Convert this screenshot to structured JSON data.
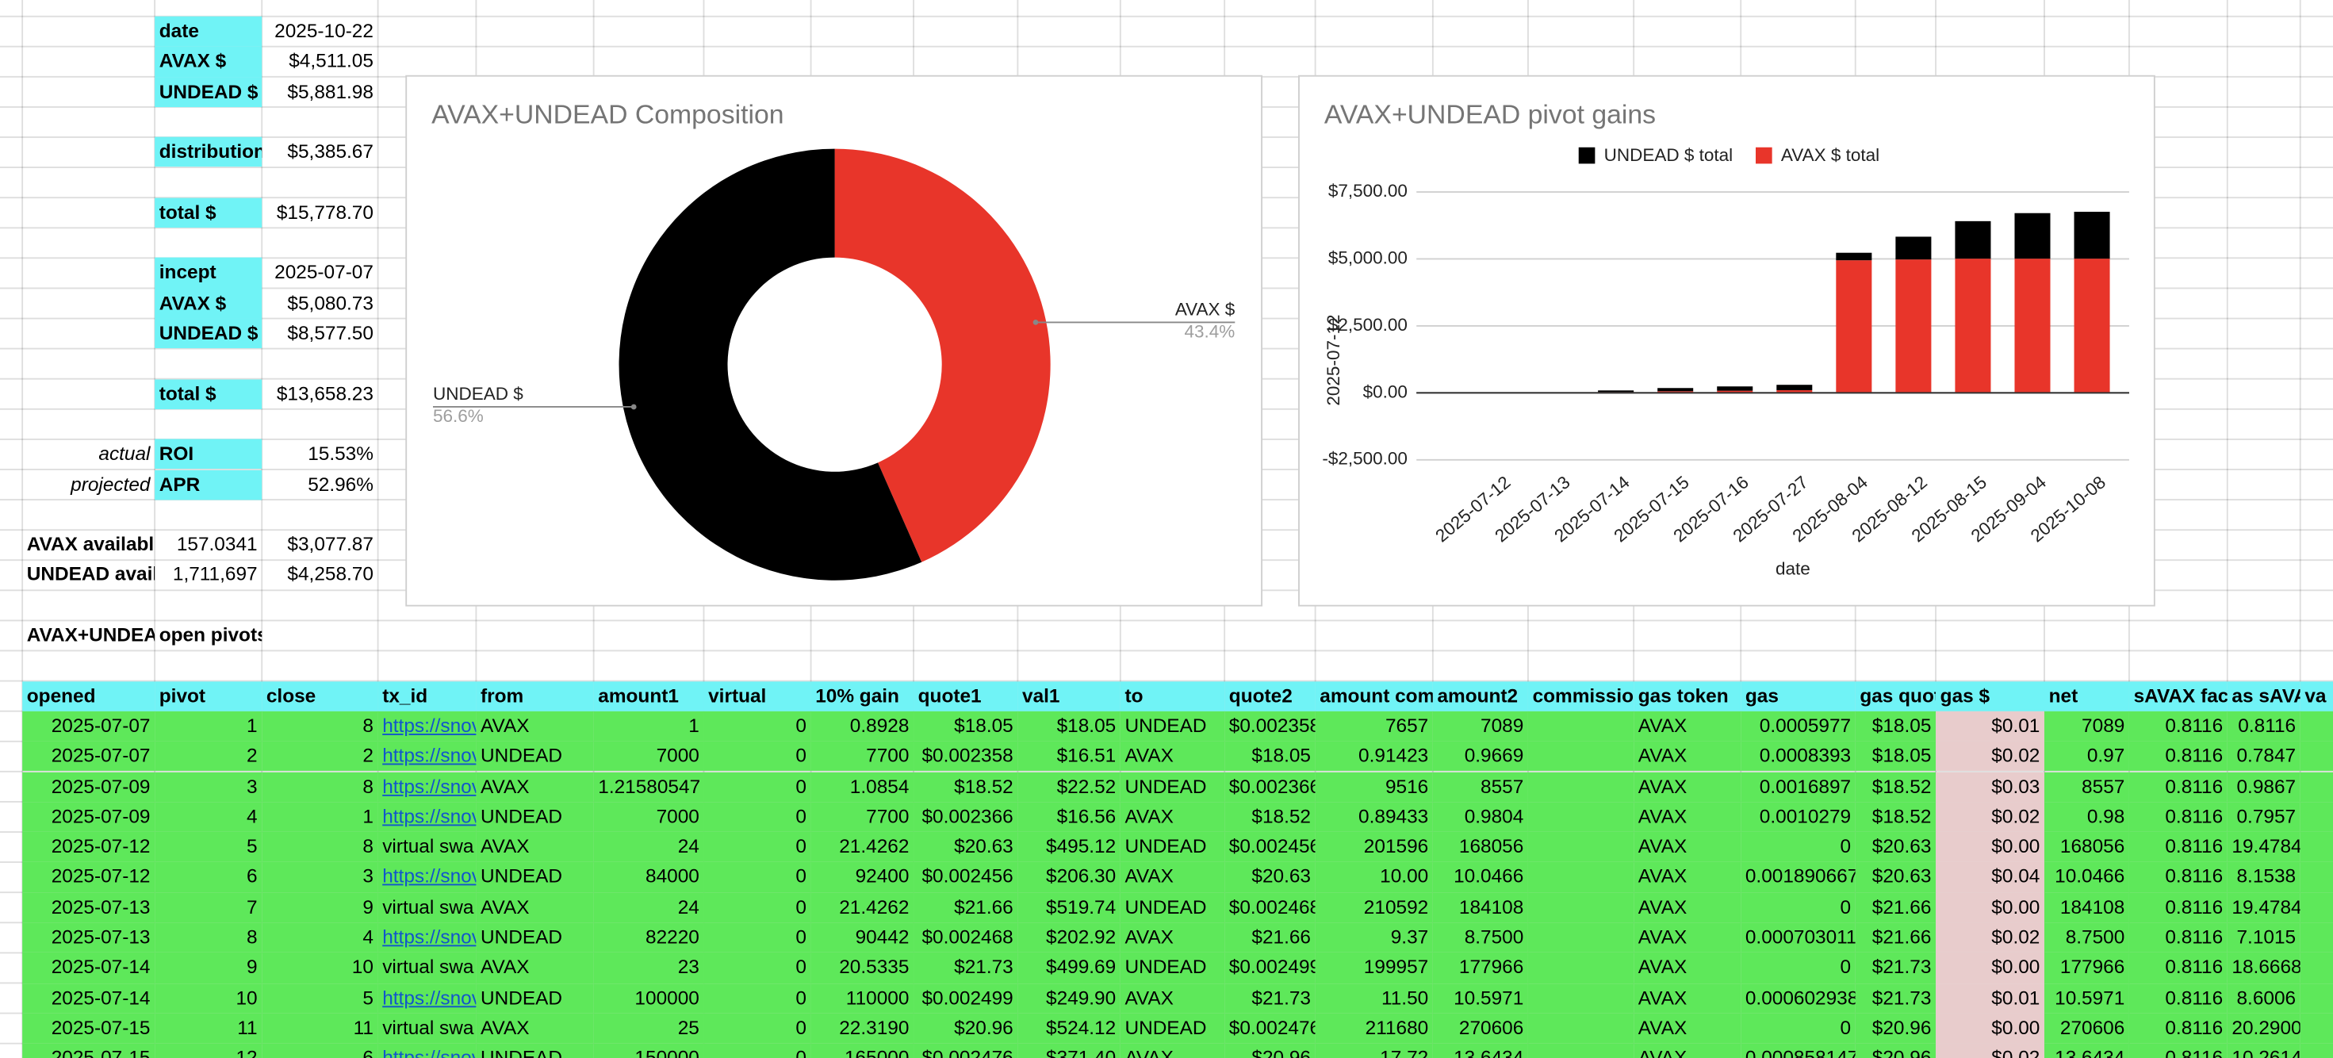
{
  "summary": [
    {
      "label": "date",
      "value": "2025-10-22"
    },
    {
      "label": "AVAX $",
      "value": "$4,511.05"
    },
    {
      "label": "UNDEAD $",
      "value": "$5,881.98"
    },
    {
      "label": "distribution",
      "value": "$5,385.67"
    },
    {
      "label": "total $",
      "value": "$15,778.70"
    },
    {
      "label": "incept",
      "value": "2025-07-07"
    },
    {
      "label": "AVAX $",
      "value": "$5,080.73"
    },
    {
      "label": "UNDEAD $",
      "value": "$8,577.50"
    },
    {
      "label": "total $",
      "value": "$13,658.23"
    },
    {
      "note": "actual",
      "label": "ROI",
      "value": "15.53%"
    },
    {
      "note": "projected",
      "label": "APR",
      "value": "52.96%"
    },
    {
      "label": "AVAX availabl",
      "amount": "157.0341",
      "value": "$3,077.87"
    },
    {
      "label": "UNDEAD avail",
      "amount": "1,711,697",
      "value": "$4,258.70"
    }
  ],
  "section_title": [
    "AVAX+UNDEA",
    "open pivots"
  ],
  "table": {
    "headers": [
      "opened",
      "pivot",
      "close",
      "tx_id",
      "from",
      "amount1",
      "virtual",
      "10% gain",
      "quote1",
      "val1",
      "to",
      "quote2",
      "amount com",
      "amount2",
      "commissio",
      "gas token",
      "gas",
      "gas quot",
      "gas $",
      "net",
      "sAVAX fac",
      "as sAVAX",
      "va"
    ],
    "rows": [
      [
        "2025-07-07",
        "1",
        "8",
        "https://snov",
        "AVAX",
        "1",
        "0",
        "0.8928",
        "$18.05",
        "$18.05",
        "UNDEAD",
        "$0.002358",
        "7657",
        "7089",
        null,
        "AVAX",
        "0.0005977",
        "$18.05",
        "$0.01",
        "7089",
        "0.8116",
        "0.8116"
      ],
      [
        "2025-07-07",
        "2",
        "2",
        "https://snov",
        "UNDEAD",
        "7000",
        "0",
        "7700",
        "$0.002358",
        "$16.51",
        "AVAX",
        "$18.05",
        "0.91423",
        "0.9669",
        null,
        "AVAX",
        "0.0008393",
        "$18.05",
        "$0.02",
        "0.97",
        "0.8116",
        "0.7847"
      ],
      [
        "2025-07-09",
        "3",
        "8",
        "https://snov",
        "AVAX",
        "1.21580547",
        "0",
        "1.0854",
        "$18.52",
        "$22.52",
        "UNDEAD",
        "$0.002366",
        "9516",
        "8557",
        null,
        "AVAX",
        "0.0016897",
        "$18.52",
        "$0.03",
        "8557",
        "0.8116",
        "0.9867"
      ],
      [
        "2025-07-09",
        "4",
        "1",
        "https://snov",
        "UNDEAD",
        "7000",
        "0",
        "7700",
        "$0.002366",
        "$16.56",
        "AVAX",
        "$18.52",
        "0.89433",
        "0.9804",
        null,
        "AVAX",
        "0.0010279",
        "$18.52",
        "$0.02",
        "0.98",
        "0.8116",
        "0.7957"
      ],
      [
        "2025-07-12",
        "5",
        "8",
        "virtual swa",
        "AVAX",
        "24",
        "0",
        "21.4262",
        "$20.63",
        "$495.12",
        "UNDEAD",
        "$0.002456",
        "201596",
        "168056",
        null,
        "AVAX",
        "0",
        "$20.63",
        "$0.00",
        "168056",
        "0.8116",
        "19.4784"
      ],
      [
        "2025-07-12",
        "6",
        "3",
        "https://snov",
        "UNDEAD",
        "84000",
        "0",
        "92400",
        "$0.002456",
        "$206.30",
        "AVAX",
        "$20.63",
        "10.00",
        "10.0466",
        null,
        "AVAX",
        "0.001890667",
        "$20.63",
        "$0.04",
        "10.0466",
        "0.8116",
        "8.1538"
      ],
      [
        "2025-07-13",
        "7",
        "9",
        "virtual swa",
        "AVAX",
        "24",
        "0",
        "21.4262",
        "$21.66",
        "$519.74",
        "UNDEAD",
        "$0.002468",
        "210592",
        "184108",
        null,
        "AVAX",
        "0",
        "$21.66",
        "$0.00",
        "184108",
        "0.8116",
        "19.4784"
      ],
      [
        "2025-07-13",
        "8",
        "4",
        "https://snov",
        "UNDEAD",
        "82220",
        "0",
        "90442",
        "$0.002468",
        "$202.92",
        "AVAX",
        "$21.66",
        "9.37",
        "8.7500",
        null,
        "AVAX",
        "0.000703011",
        "$21.66",
        "$0.02",
        "8.7500",
        "0.8116",
        "7.1015"
      ],
      [
        "2025-07-14",
        "9",
        "10",
        "virtual swa",
        "AVAX",
        "23",
        "0",
        "20.5335",
        "$21.73",
        "$499.69",
        "UNDEAD",
        "$0.002499",
        "199957",
        "177966",
        null,
        "AVAX",
        "0",
        "$21.73",
        "$0.00",
        "177966",
        "0.8116",
        "18.6668"
      ],
      [
        "2025-07-14",
        "10",
        "5",
        "https://snov",
        "UNDEAD",
        "100000",
        "0",
        "110000",
        "$0.002499",
        "$249.90",
        "AVAX",
        "$21.73",
        "11.50",
        "10.5971",
        null,
        "AVAX",
        "0.000602938",
        "$21.73",
        "$0.01",
        "10.5971",
        "0.8116",
        "8.6006"
      ],
      [
        "2025-07-15",
        "11",
        "11",
        "virtual swa",
        "AVAX",
        "25",
        "0",
        "22.3190",
        "$20.96",
        "$524.12",
        "UNDEAD",
        "$0.002476",
        "211680",
        "270606",
        null,
        "AVAX",
        "0",
        "$20.96",
        "$0.00",
        "270606",
        "0.8116",
        "20.2900"
      ],
      [
        "2025-07-15",
        "12",
        "6",
        "https://snov",
        "UNDEAD",
        "150000",
        "0",
        "165000",
        "$0.002476",
        "$371.40",
        "AVAX",
        "$20.96",
        "17.72",
        "13.6434",
        null,
        "AVAX",
        "0.000858147",
        "$20.96",
        "$0.02",
        "13.6434",
        "0.8116",
        "10.2614"
      ]
    ]
  },
  "chart_data": [
    {
      "type": "pie",
      "title": "AVAX+UNDEAD Composition",
      "donut": true,
      "categories": [
        "AVAX $",
        "UNDEAD $"
      ],
      "values": [
        43.4,
        56.6
      ],
      "value_labels": [
        "43.4%",
        "56.6%"
      ],
      "colors": [
        "#e8352a",
        "#000000"
      ]
    },
    {
      "type": "bar",
      "title": "AVAX+UNDEAD pivot gains",
      "stacked": true,
      "grid": true,
      "x_label": "date",
      "y_label": "2025-07-12",
      "categories": [
        "2025-07-12",
        "2025-07-13",
        "2025-07-14",
        "2025-07-15",
        "2025-07-16",
        "2025-07-27",
        "2025-08-04",
        "2025-08-12",
        "2025-08-15",
        "2025-09-04",
        "2025-10-08"
      ],
      "series": [
        {
          "name": "UNDEAD $ total",
          "color": "#000000",
          "values": [
            0,
            0,
            60,
            120,
            160,
            200,
            280,
            850,
            1400,
            1700,
            1750
          ]
        },
        {
          "name": "AVAX $ total",
          "color": "#e8352a",
          "values": [
            0,
            0,
            30,
            60,
            80,
            100,
            4950,
            4980,
            5010,
            5010,
            5010
          ]
        }
      ],
      "ylim": [
        -2500,
        7500
      ],
      "yticks": [
        {
          "value": -2500,
          "label": "-$2,500.00"
        },
        {
          "value": 0,
          "label": "$0.00"
        },
        {
          "value": 2500,
          "label": "$2,500.00"
        },
        {
          "value": 5000,
          "label": "$5,000.00"
        },
        {
          "value": 7500,
          "label": "$7,500.00"
        }
      ]
    }
  ]
}
